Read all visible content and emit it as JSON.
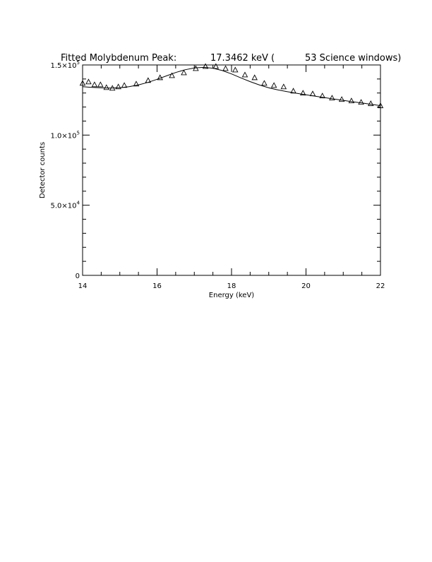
{
  "chart_data": {
    "type": "scatter",
    "title_parts": [
      "Fitted Molybdenum Peak:",
      "17.3462 keV (",
      "53 Science windows)"
    ],
    "xlabel": "Energy (keV)",
    "ylabel": "Detector counts",
    "xlim": [
      14,
      22
    ],
    "ylim": [
      0,
      150000
    ],
    "x_ticks": [
      14,
      16,
      18,
      20,
      22
    ],
    "x_tick_labels": [
      "14",
      "16",
      "18",
      "20",
      "22"
    ],
    "y_ticks": [
      0,
      50000,
      100000,
      150000
    ],
    "y_tick_labels": [
      {
        "mantissa": "0",
        "exp": ""
      },
      {
        "mantissa": "5.0×10",
        "exp": "4"
      },
      {
        "mantissa": "1.0×10",
        "exp": "5"
      },
      {
        "mantissa": "1.5×10",
        "exp": "5"
      }
    ],
    "grid": false,
    "series": [
      {
        "marker": "triangle",
        "x": [
          14.0,
          14.16,
          14.32,
          14.48,
          14.64,
          14.8,
          14.96,
          15.12,
          15.44,
          15.76,
          16.08,
          16.4,
          16.72,
          17.04,
          17.3,
          17.58,
          17.84,
          18.1,
          18.36,
          18.62,
          18.88,
          19.14,
          19.4,
          19.66,
          19.92,
          20.18,
          20.44,
          20.7,
          20.96,
          21.22,
          21.48,
          21.74,
          22.0
        ],
        "y": [
          137000,
          138000,
          136000,
          136000,
          134000,
          133500,
          134500,
          135500,
          136500,
          139000,
          141000,
          142500,
          144500,
          147500,
          149000,
          149000,
          147500,
          146500,
          143000,
          141000,
          137000,
          135500,
          134500,
          131500,
          130000,
          129500,
          128000,
          126500,
          125500,
          124500,
          123500,
          122500,
          121000
        ]
      },
      {
        "type": "line",
        "x": [
          14.0,
          14.25,
          14.5,
          14.75,
          15.0,
          15.25,
          15.5,
          15.75,
          16.0,
          16.25,
          16.5,
          16.75,
          17.0,
          17.25,
          17.5,
          17.75,
          18.0,
          18.25,
          18.5,
          18.75,
          19.0,
          19.25,
          19.5,
          19.75,
          20.0,
          20.25,
          20.5,
          20.75,
          21.0,
          21.25,
          21.5,
          21.75,
          22.0
        ],
        "y": [
          134500,
          134000,
          133700,
          133500,
          133800,
          134500,
          135800,
          137500,
          139800,
          142200,
          144600,
          146600,
          147900,
          148300,
          147700,
          146000,
          143600,
          140800,
          138100,
          135700,
          133700,
          132200,
          130900,
          129800,
          128700,
          127700,
          126700,
          125700,
          124800,
          123800,
          122900,
          121900,
          121000
        ]
      }
    ]
  }
}
